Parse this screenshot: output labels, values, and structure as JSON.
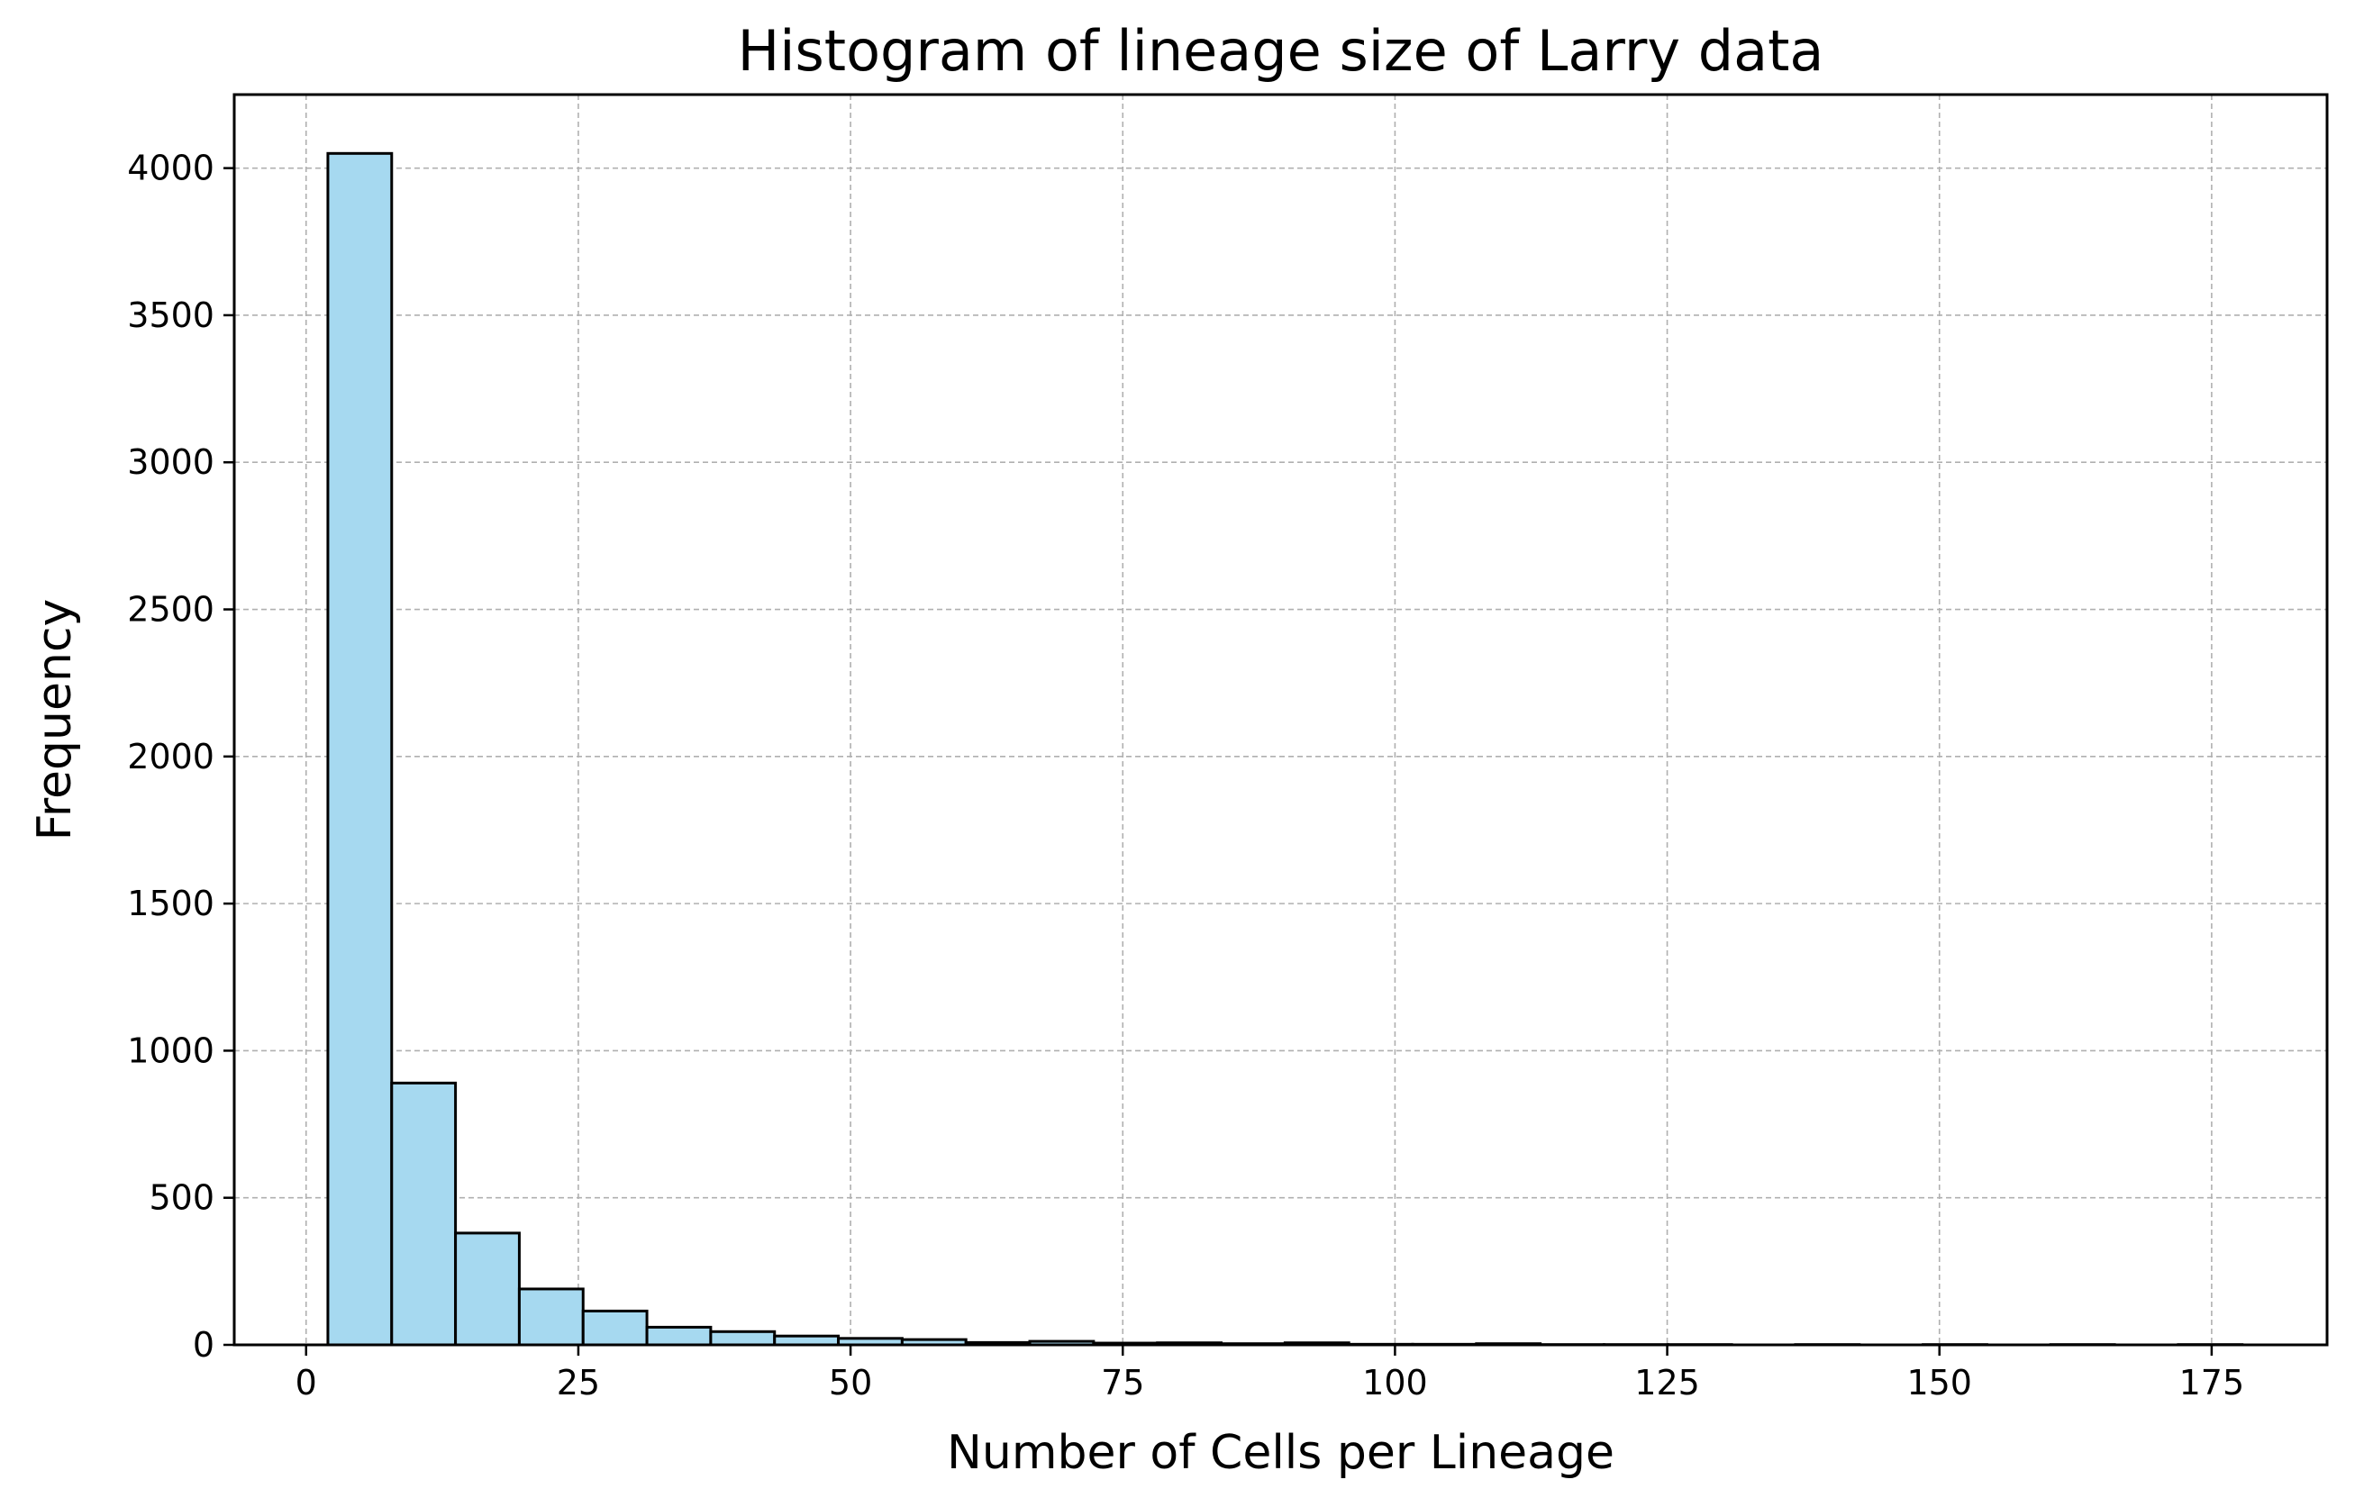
{
  "chart_data": {
    "type": "bar",
    "title": "Histogram of lineage size of Larry data",
    "xlabel": "Number of Cells per Lineage",
    "ylabel": "Frequency",
    "xlim": [
      -6.6,
      185.6
    ],
    "ylim": [
      0,
      4250
    ],
    "xticks": [
      0,
      25,
      50,
      75,
      100,
      125,
      150,
      175
    ],
    "yticks": [
      0,
      500,
      1000,
      1500,
      2000,
      2500,
      3000,
      3500,
      4000
    ],
    "grid": true,
    "bar_color": "#a6d9f0",
    "edge_color": "#000000",
    "bins": [
      {
        "x0": 2.0,
        "x1": 7.86,
        "value": 4050
      },
      {
        "x0": 7.86,
        "x1": 13.72,
        "value": 890
      },
      {
        "x0": 13.72,
        "x1": 19.58,
        "value": 380
      },
      {
        "x0": 19.58,
        "x1": 25.44,
        "value": 190
      },
      {
        "x0": 25.44,
        "x1": 31.3,
        "value": 115
      },
      {
        "x0": 31.3,
        "x1": 37.16,
        "value": 60
      },
      {
        "x0": 37.16,
        "x1": 43.02,
        "value": 45
      },
      {
        "x0": 43.02,
        "x1": 48.88,
        "value": 30
      },
      {
        "x0": 48.88,
        "x1": 54.74,
        "value": 22
      },
      {
        "x0": 54.74,
        "x1": 60.6,
        "value": 18
      },
      {
        "x0": 60.6,
        "x1": 66.46,
        "value": 8
      },
      {
        "x0": 66.46,
        "x1": 72.32,
        "value": 12
      },
      {
        "x0": 72.32,
        "x1": 78.18,
        "value": 6
      },
      {
        "x0": 78.18,
        "x1": 84.04,
        "value": 7
      },
      {
        "x0": 84.04,
        "x1": 89.9,
        "value": 4
      },
      {
        "x0": 89.9,
        "x1": 95.76,
        "value": 7
      },
      {
        "x0": 95.76,
        "x1": 101.62,
        "value": 2
      },
      {
        "x0": 101.62,
        "x1": 107.48,
        "value": 2
      },
      {
        "x0": 107.48,
        "x1": 113.34,
        "value": 4
      },
      {
        "x0": 113.34,
        "x1": 119.2,
        "value": 1
      },
      {
        "x0": 119.2,
        "x1": 125.06,
        "value": 1
      },
      {
        "x0": 125.06,
        "x1": 130.92,
        "value": 1
      },
      {
        "x0": 130.92,
        "x1": 136.78,
        "value": 0
      },
      {
        "x0": 136.78,
        "x1": 142.64,
        "value": 1
      },
      {
        "x0": 142.64,
        "x1": 148.5,
        "value": 0
      },
      {
        "x0": 148.5,
        "x1": 154.36,
        "value": 1
      },
      {
        "x0": 154.36,
        "x1": 160.22,
        "value": 0
      },
      {
        "x0": 160.22,
        "x1": 166.08,
        "value": 1
      },
      {
        "x0": 166.08,
        "x1": 171.94,
        "value": 0
      },
      {
        "x0": 171.94,
        "x1": 177.8,
        "value": 1
      }
    ]
  }
}
